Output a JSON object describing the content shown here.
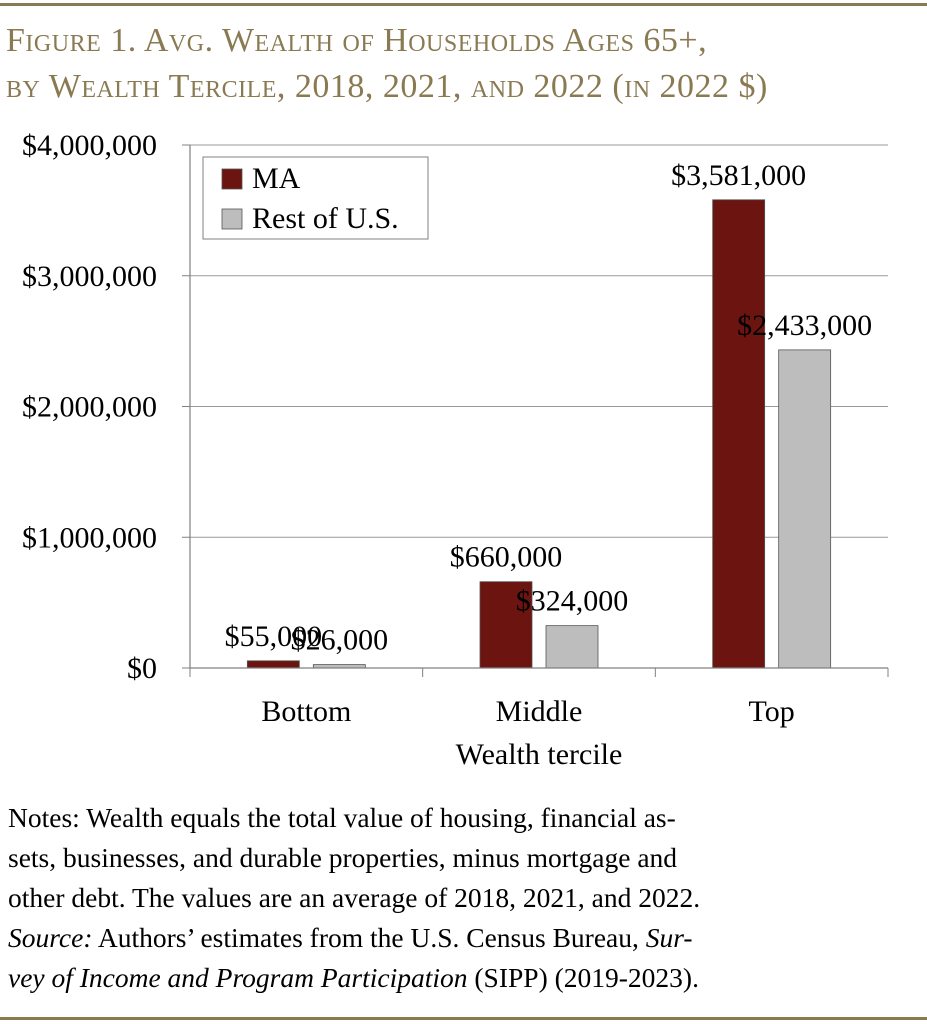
{
  "title": {
    "line1": "Figure 1. Avg. Wealth of Households Ages 65+,",
    "line2": "by Wealth Tercile, 2018, 2021, and 2022 (in 2022 $)"
  },
  "chart_data": {
    "type": "bar",
    "categories": [
      "Bottom",
      "Middle",
      "Top"
    ],
    "series": [
      {
        "name": "MA",
        "values": [
          55000,
          660000,
          3581000
        ],
        "labels": [
          "$55,000",
          "$660,000",
          "$3,581,000"
        ],
        "color": "#6b1410"
      },
      {
        "name": "Rest of U.S.",
        "values": [
          26000,
          324000,
          2433000
        ],
        "labels": [
          "$26,000",
          "$324,000",
          "$2,433,000"
        ],
        "color": "#bdbdbd"
      }
    ],
    "xlabel": "Wealth tercile",
    "ylabel": "",
    "ylim": [
      0,
      4000000
    ],
    "yticks": [
      0,
      1000000,
      2000000,
      3000000,
      4000000
    ],
    "ytick_labels": [
      "$0",
      "$1,000,000",
      "$2,000,000",
      "$3,000,000",
      "$4,000,000"
    ],
    "grid": true,
    "legend": "top-left"
  },
  "notes": {
    "line1": "Notes: Wealth equals the total value of housing, financial as-",
    "line2": "sets, businesses, and durable properties, minus mortgage and",
    "line3": "other debt.  The values are an average of 2018, 2021, and 2022.",
    "source_label": "Source:",
    "source_text": " Authors’ estimates from the U.S. Census Bureau, ",
    "survey_part1": "Sur-",
    "survey_part2": "vey of Income and Program Participation",
    "source_end": " (SIPP) (2019-2023)."
  },
  "colors": {
    "accent": "#8a7a52",
    "ma": "#6b1410",
    "rest": "#bdbdbd"
  }
}
